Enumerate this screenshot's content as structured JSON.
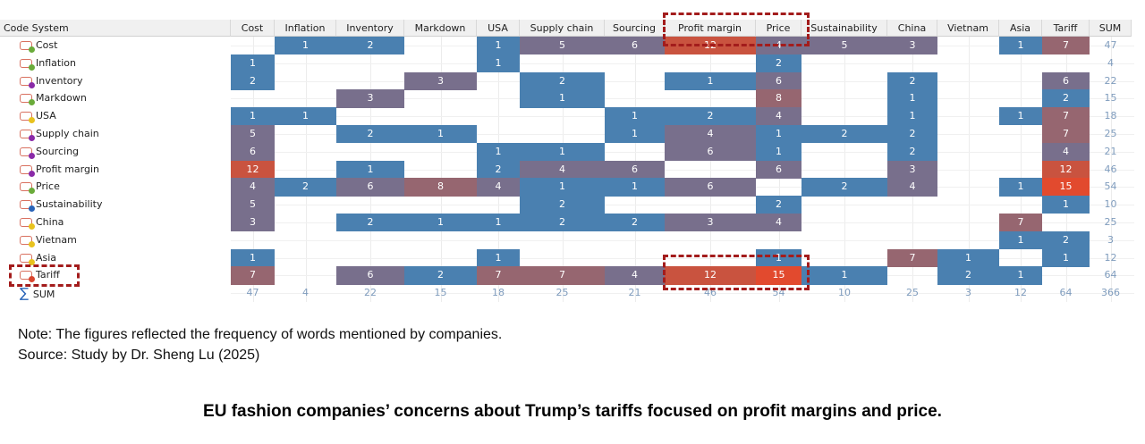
{
  "chart_data": {
    "type": "heatmap",
    "corner_label": "Code System",
    "columns": [
      "Cost",
      "Inflation",
      "Inventory",
      "Markdown",
      "USA",
      "Supply chain",
      "Sourcing",
      "Profit margin",
      "Price",
      "Sustainability",
      "China",
      "Vietnam",
      "Asia",
      "Tariff"
    ],
    "sum_label": "SUM",
    "rows": [
      {
        "name": "Cost",
        "dot": "#6aab3a",
        "values": [
          null,
          1,
          2,
          null,
          1,
          5,
          6,
          12,
          4,
          5,
          3,
          null,
          1,
          7
        ],
        "sum": 47
      },
      {
        "name": "Inflation",
        "dot": "#6aab3a",
        "values": [
          1,
          null,
          null,
          null,
          1,
          null,
          null,
          null,
          2,
          null,
          null,
          null,
          null,
          null
        ],
        "sum": 4
      },
      {
        "name": "Inventory",
        "dot": "#8a2aa8",
        "values": [
          2,
          null,
          null,
          3,
          null,
          2,
          null,
          1,
          6,
          null,
          2,
          null,
          null,
          6
        ],
        "sum": 22
      },
      {
        "name": "Markdown",
        "dot": "#6aab3a",
        "values": [
          null,
          null,
          3,
          null,
          null,
          1,
          null,
          null,
          8,
          null,
          1,
          null,
          null,
          2
        ],
        "sum": 15
      },
      {
        "name": "USA",
        "dot": "#e8c21e",
        "values": [
          1,
          1,
          null,
          null,
          null,
          null,
          1,
          2,
          4,
          null,
          1,
          null,
          1,
          7
        ],
        "sum": 18
      },
      {
        "name": "Supply chain",
        "dot": "#8a2aa8",
        "values": [
          5,
          null,
          2,
          1,
          null,
          null,
          1,
          4,
          1,
          2,
          2,
          null,
          null,
          7
        ],
        "sum": 25
      },
      {
        "name": "Sourcing",
        "dot": "#8a2aa8",
        "values": [
          6,
          null,
          null,
          null,
          1,
          1,
          null,
          6,
          1,
          null,
          2,
          null,
          null,
          4
        ],
        "sum": 21
      },
      {
        "name": "Profit margin",
        "dot": "#8a2aa8",
        "values": [
          12,
          null,
          1,
          null,
          2,
          4,
          6,
          null,
          6,
          null,
          3,
          null,
          null,
          12
        ],
        "sum": 46
      },
      {
        "name": "Price",
        "dot": "#6aab3a",
        "values": [
          4,
          2,
          6,
          8,
          4,
          1,
          1,
          6,
          null,
          2,
          4,
          null,
          1,
          15
        ],
        "sum": 54
      },
      {
        "name": "Sustainability",
        "dot": "#2a64b8",
        "values": [
          5,
          null,
          null,
          null,
          null,
          2,
          null,
          null,
          2,
          null,
          null,
          null,
          null,
          1
        ],
        "sum": 10
      },
      {
        "name": "China",
        "dot": "#e8c21e",
        "values": [
          3,
          null,
          2,
          1,
          1,
          2,
          2,
          3,
          4,
          null,
          null,
          null,
          7,
          null
        ],
        "sum": 25
      },
      {
        "name": "Vietnam",
        "dot": "#e8c21e",
        "values": [
          null,
          null,
          null,
          null,
          null,
          null,
          null,
          null,
          null,
          null,
          null,
          null,
          1,
          2
        ],
        "sum": 3
      },
      {
        "name": "Asia",
        "dot": "#e8c21e",
        "values": [
          1,
          null,
          null,
          null,
          1,
          null,
          null,
          null,
          1,
          null,
          7,
          1,
          null,
          1
        ],
        "sum": 12
      },
      {
        "name": "Tariff",
        "dot": "#d9452e",
        "values": [
          7,
          null,
          6,
          2,
          7,
          7,
          4,
          12,
          15,
          1,
          null,
          2,
          1,
          null
        ],
        "sum": 64
      }
    ],
    "column_sums": [
      47,
      4,
      22,
      15,
      18,
      25,
      21,
      46,
      54,
      10,
      25,
      3,
      12,
      64
    ],
    "total": 366,
    "colors": {
      "low": "#4a80b0",
      "mid": "#786f8c",
      "high": "#966670",
      "very_high": "#c9533f",
      "max": "#e24a2e"
    },
    "highlights": [
      "Cost × Profit margin / Price",
      "Tariff × Profit margin / Price",
      "Tariff row label"
    ]
  },
  "note": "Note: The figures reflected the frequency of words mentioned by companies.",
  "source": "Source: Study by Dr. Sheng Lu (2025)",
  "headline": "EU fashion companies’ concerns about Trump’s tariffs focused on profit margins and price."
}
